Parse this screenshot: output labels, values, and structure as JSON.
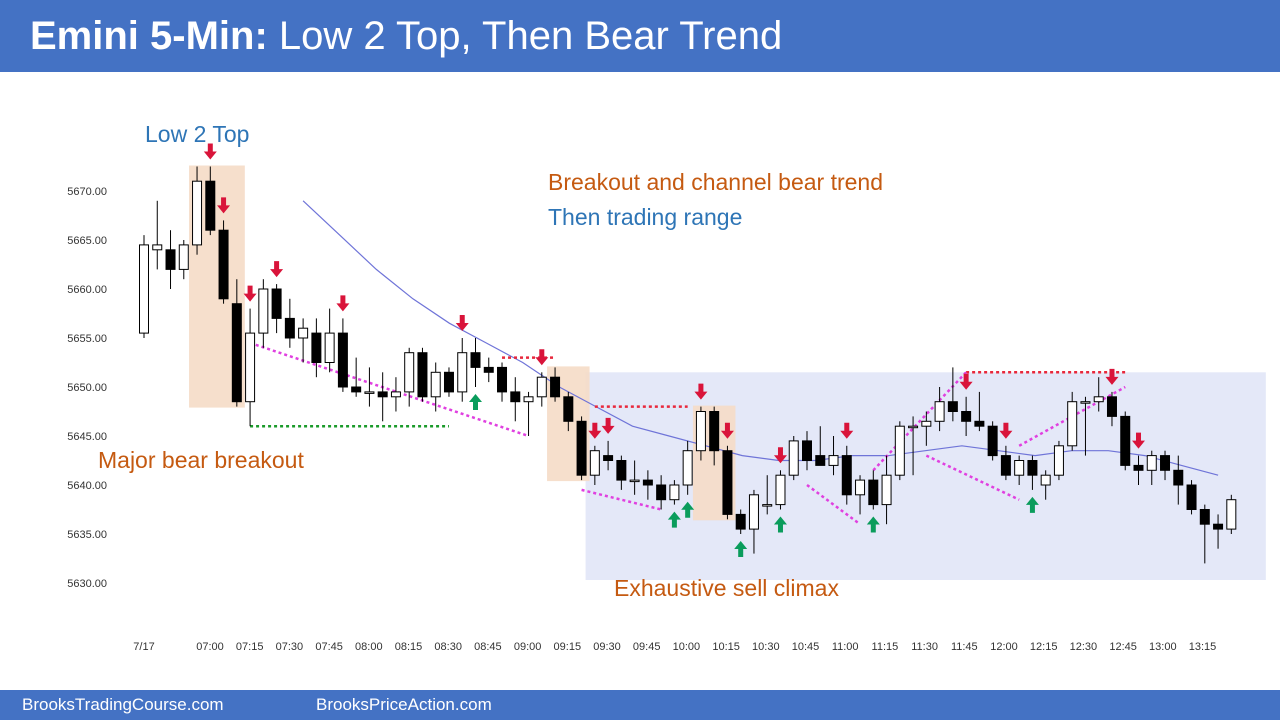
{
  "header": {
    "title_bold": "Emini 5-Min:",
    "title_rest": "Low 2 Top, Then Bear Trend"
  },
  "footer": {
    "left_link": "BrooksTradingCourse.com",
    "right_link": "BrooksPriceAction.com"
  },
  "annotations": {
    "low2top": "Low 2 Top",
    "breakout_channel": "Breakout and channel bear trend",
    "trading_range": "Then trading range",
    "major_bear_breakout": "Major bear breakout",
    "exhaustive_climax": "Exhaustive sell climax"
  },
  "colors": {
    "header_bg": "#4472c4",
    "annotation_orange": "#c55a11",
    "annotation_blue": "#2e75b6",
    "bear_arrow": "#d9143a",
    "bull_arrow": "#0a9c5c",
    "ema_line": "#6f74d8",
    "magenta_trendline": "#e040e0",
    "green_support": "#1a9a2a",
    "red_resistance": "#e8283c",
    "range_box": "#e4e8f8",
    "climax_box": "#f5dcc6"
  },
  "chart_data": {
    "type": "candlestick",
    "title": "",
    "ylim": [
      5628,
      5675
    ],
    "y_ticks": [
      "5630.00",
      "5635.00",
      "5640.00",
      "5645.00",
      "5650.00",
      "5655.00",
      "5660.00",
      "5665.00",
      "5670.00"
    ],
    "x_ticks": [
      "7/17",
      "07:00",
      "07:15",
      "07:30",
      "07:45",
      "08:00",
      "08:15",
      "08:30",
      "08:45",
      "09:00",
      "09:15",
      "09:30",
      "09:45",
      "10:00",
      "10:15",
      "10:30",
      "10:45",
      "11:00",
      "11:15",
      "11:30",
      "11:45",
      "12:00",
      "12:15",
      "12:30",
      "12:45",
      "13:00",
      "13:15"
    ],
    "grid": false,
    "bars": [
      {
        "o": 5655.5,
        "h": 5665.5,
        "l": 5655.0,
        "c": 5664.5
      },
      {
        "o": 5664.0,
        "h": 5669.0,
        "l": 5662.0,
        "c": 5664.5
      },
      {
        "o": 5664.0,
        "h": 5666.0,
        "l": 5660.0,
        "c": 5662.0
      },
      {
        "o": 5662.0,
        "h": 5665.0,
        "l": 5661.0,
        "c": 5664.5
      },
      {
        "o": 5664.5,
        "h": 5672.5,
        "l": 5663.5,
        "c": 5671.0
      },
      {
        "o": 5671.0,
        "h": 5672.5,
        "l": 5665.5,
        "c": 5666.0
      },
      {
        "o": 5666.0,
        "h": 5667.0,
        "l": 5658.5,
        "c": 5659.0
      },
      {
        "o": 5658.5,
        "h": 5661.0,
        "l": 5648.0,
        "c": 5648.5
      },
      {
        "o": 5648.5,
        "h": 5658.0,
        "l": 5646.0,
        "c": 5655.5
      },
      {
        "o": 5655.5,
        "h": 5661.0,
        "l": 5654.0,
        "c": 5660.0
      },
      {
        "o": 5660.0,
        "h": 5660.5,
        "l": 5655.5,
        "c": 5657.0
      },
      {
        "o": 5657.0,
        "h": 5659.0,
        "l": 5654.0,
        "c": 5655.0
      },
      {
        "o": 5655.0,
        "h": 5657.0,
        "l": 5652.5,
        "c": 5656.0
      },
      {
        "o": 5655.5,
        "h": 5657.0,
        "l": 5651.0,
        "c": 5652.5
      },
      {
        "o": 5652.5,
        "h": 5658.0,
        "l": 5651.5,
        "c": 5655.5
      },
      {
        "o": 5655.5,
        "h": 5657.0,
        "l": 5649.5,
        "c": 5650.0
      },
      {
        "o": 5650.0,
        "h": 5653.0,
        "l": 5649.0,
        "c": 5649.5
      },
      {
        "o": 5649.5,
        "h": 5652.0,
        "l": 5648.0,
        "c": 5649.5
      },
      {
        "o": 5649.5,
        "h": 5651.5,
        "l": 5646.5,
        "c": 5649.0
      },
      {
        "o": 5649.0,
        "h": 5651.0,
        "l": 5647.5,
        "c": 5649.5
      },
      {
        "o": 5649.5,
        "h": 5654.0,
        "l": 5648.0,
        "c": 5653.5
      },
      {
        "o": 5653.5,
        "h": 5654.0,
        "l": 5648.5,
        "c": 5649.0
      },
      {
        "o": 5649.0,
        "h": 5652.5,
        "l": 5647.5,
        "c": 5651.5
      },
      {
        "o": 5651.5,
        "h": 5652.0,
        "l": 5649.0,
        "c": 5649.5
      },
      {
        "o": 5649.5,
        "h": 5655.0,
        "l": 5648.5,
        "c": 5653.5
      },
      {
        "o": 5653.5,
        "h": 5655.0,
        "l": 5650.0,
        "c": 5652.0
      },
      {
        "o": 5652.0,
        "h": 5653.0,
        "l": 5650.5,
        "c": 5651.5
      },
      {
        "o": 5652.0,
        "h": 5652.5,
        "l": 5648.5,
        "c": 5649.5
      },
      {
        "o": 5649.5,
        "h": 5651.0,
        "l": 5646.5,
        "c": 5648.5
      },
      {
        "o": 5648.5,
        "h": 5649.5,
        "l": 5645.0,
        "c": 5649.0
      },
      {
        "o": 5649.0,
        "h": 5651.5,
        "l": 5648.0,
        "c": 5651.0
      },
      {
        "o": 5651.0,
        "h": 5652.0,
        "l": 5648.5,
        "c": 5649.0
      },
      {
        "o": 5649.0,
        "h": 5649.5,
        "l": 5645.5,
        "c": 5646.5
      },
      {
        "o": 5646.5,
        "h": 5647.0,
        "l": 5640.5,
        "c": 5641.0
      },
      {
        "o": 5641.0,
        "h": 5644.0,
        "l": 5640.0,
        "c": 5643.5
      },
      {
        "o": 5643.0,
        "h": 5644.5,
        "l": 5641.5,
        "c": 5642.5
      },
      {
        "o": 5642.5,
        "h": 5643.0,
        "l": 5639.5,
        "c": 5640.5
      },
      {
        "o": 5640.5,
        "h": 5642.5,
        "l": 5639.0,
        "c": 5640.5
      },
      {
        "o": 5640.5,
        "h": 5641.5,
        "l": 5638.5,
        "c": 5640.0
      },
      {
        "o": 5640.0,
        "h": 5641.0,
        "l": 5637.5,
        "c": 5638.5
      },
      {
        "o": 5638.5,
        "h": 5640.5,
        "l": 5638.0,
        "c": 5640.0
      },
      {
        "o": 5640.0,
        "h": 5644.5,
        "l": 5639.0,
        "c": 5643.5
      },
      {
        "o": 5643.5,
        "h": 5648.0,
        "l": 5642.5,
        "c": 5647.5
      },
      {
        "o": 5647.5,
        "h": 5648.0,
        "l": 5642.0,
        "c": 5643.5
      },
      {
        "o": 5643.5,
        "h": 5644.0,
        "l": 5636.5,
        "c": 5637.0
      },
      {
        "o": 5637.0,
        "h": 5637.5,
        "l": 5635.0,
        "c": 5635.5
      },
      {
        "o": 5635.5,
        "h": 5639.5,
        "l": 5633.0,
        "c": 5639.0
      },
      {
        "o": 5638.0,
        "h": 5641.0,
        "l": 5637.0,
        "c": 5638.0
      },
      {
        "o": 5638.0,
        "h": 5641.5,
        "l": 5637.5,
        "c": 5641.0
      },
      {
        "o": 5641.0,
        "h": 5645.0,
        "l": 5640.5,
        "c": 5644.5
      },
      {
        "o": 5644.5,
        "h": 5645.5,
        "l": 5641.5,
        "c": 5642.5
      },
      {
        "o": 5643.0,
        "h": 5646.0,
        "l": 5642.0,
        "c": 5642.0
      },
      {
        "o": 5642.0,
        "h": 5645.0,
        "l": 5641.0,
        "c": 5643.0
      },
      {
        "o": 5643.0,
        "h": 5644.0,
        "l": 5638.0,
        "c": 5639.0
      },
      {
        "o": 5639.0,
        "h": 5641.0,
        "l": 5637.0,
        "c": 5640.5
      },
      {
        "o": 5640.5,
        "h": 5641.5,
        "l": 5637.5,
        "c": 5638.0
      },
      {
        "o": 5638.0,
        "h": 5643.0,
        "l": 5636.0,
        "c": 5641.0
      },
      {
        "o": 5641.0,
        "h": 5646.5,
        "l": 5640.5,
        "c": 5646.0
      },
      {
        "o": 5646.0,
        "h": 5647.0,
        "l": 5641.0,
        "c": 5646.0
      },
      {
        "o": 5646.0,
        "h": 5647.5,
        "l": 5644.0,
        "c": 5646.5
      },
      {
        "o": 5646.5,
        "h": 5650.0,
        "l": 5645.5,
        "c": 5648.5
      },
      {
        "o": 5648.5,
        "h": 5652.0,
        "l": 5646.5,
        "c": 5647.5
      },
      {
        "o": 5647.5,
        "h": 5649.0,
        "l": 5645.0,
        "c": 5646.5
      },
      {
        "o": 5646.5,
        "h": 5649.5,
        "l": 5645.5,
        "c": 5646.0
      },
      {
        "o": 5646.0,
        "h": 5646.5,
        "l": 5642.5,
        "c": 5643.0
      },
      {
        "o": 5643.0,
        "h": 5644.0,
        "l": 5640.5,
        "c": 5641.0
      },
      {
        "o": 5641.0,
        "h": 5643.0,
        "l": 5640.0,
        "c": 5642.5
      },
      {
        "o": 5642.5,
        "h": 5643.0,
        "l": 5639.5,
        "c": 5641.0
      },
      {
        "o": 5640.0,
        "h": 5641.5,
        "l": 5638.5,
        "c": 5641.0
      },
      {
        "o": 5641.0,
        "h": 5644.5,
        "l": 5640.5,
        "c": 5644.0
      },
      {
        "o": 5644.0,
        "h": 5649.5,
        "l": 5643.5,
        "c": 5648.5
      },
      {
        "o": 5648.5,
        "h": 5649.0,
        "l": 5643.0,
        "c": 5648.5
      },
      {
        "o": 5648.5,
        "h": 5651.0,
        "l": 5647.5,
        "c": 5649.0
      },
      {
        "o": 5649.0,
        "h": 5649.5,
        "l": 5646.0,
        "c": 5647.0
      },
      {
        "o": 5647.0,
        "h": 5647.5,
        "l": 5641.5,
        "c": 5642.0
      },
      {
        "o": 5642.0,
        "h": 5643.0,
        "l": 5640.0,
        "c": 5641.5
      },
      {
        "o": 5641.5,
        "h": 5643.5,
        "l": 5640.0,
        "c": 5643.0
      },
      {
        "o": 5643.0,
        "h": 5643.5,
        "l": 5640.5,
        "c": 5641.5
      },
      {
        "o": 5641.5,
        "h": 5643.0,
        "l": 5638.0,
        "c": 5640.0
      },
      {
        "o": 5640.0,
        "h": 5640.5,
        "l": 5637.0,
        "c": 5637.5
      },
      {
        "o": 5637.5,
        "h": 5638.0,
        "l": 5632.0,
        "c": 5636.0
      },
      {
        "o": 5636.0,
        "h": 5637.0,
        "l": 5633.5,
        "c": 5635.5
      },
      {
        "o": 5635.5,
        "h": 5639.0,
        "l": 5635.0,
        "c": 5638.5
      }
    ],
    "ema": [
      5669.0,
      5665.5,
      5662.0,
      5659.0,
      5656.5,
      5654.5,
      5652.5,
      5650.0,
      5648.0,
      5646.0,
      5645.0,
      5644.0,
      5643.0,
      5642.5,
      5642.5,
      5643.0,
      5643.0,
      5643.5,
      5644.0,
      5643.5,
      5643.0,
      5643.5,
      5643.5,
      5643.0,
      5642.0,
      5641.0
    ],
    "ema_start_bar": 12,
    "ema_step_bars": 2.76,
    "bear_signal_bars": [
      5,
      6,
      8,
      10,
      15,
      24,
      30,
      34,
      35,
      42,
      44,
      48,
      53,
      62,
      65,
      73,
      75
    ],
    "bull_signal_bars": [
      25,
      40,
      41,
      45,
      48,
      55,
      67
    ],
    "shaded_zones": [
      {
        "kind": "climax",
        "from_bar": 4,
        "to_bar": 7
      },
      {
        "kind": "climax",
        "from_bar": 31,
        "to_bar": 33
      },
      {
        "kind": "climax",
        "from_bar": 42,
        "to_bar": 44
      },
      {
        "kind": "range",
        "from_bar": 33,
        "to_bar": 84,
        "y_top": 5651.5,
        "y_bottom": 5630.0
      }
    ],
    "support_line": {
      "from_bar": 8,
      "to_bar": 23,
      "y": 5646.0
    },
    "resistance_lines": [
      {
        "from_bar": 27,
        "to_bar": 31,
        "y": 5653.0
      },
      {
        "from_bar": 34,
        "to_bar": 41,
        "y": 5648.0
      },
      {
        "from_bar": 62,
        "to_bar": 74,
        "y": 5651.5
      }
    ],
    "channel_lines": [
      {
        "from_bar": 8,
        "y1": 5654.5,
        "to_bar": 29,
        "y2": 5645.0
      },
      {
        "from_bar": 33,
        "y1": 5639.5,
        "to_bar": 39,
        "y2": 5637.5
      },
      {
        "from_bar": 50,
        "y1": 5640.0,
        "to_bar": 54,
        "y2": 5636.0
      },
      {
        "from_bar": 55,
        "y1": 5641.5,
        "to_bar": 62,
        "y2": 5651.5
      },
      {
        "from_bar": 59,
        "y1": 5643.0,
        "to_bar": 66,
        "y2": 5638.5
      },
      {
        "from_bar": 66,
        "y1": 5644.0,
        "to_bar": 74,
        "y2": 5650.0
      }
    ]
  }
}
